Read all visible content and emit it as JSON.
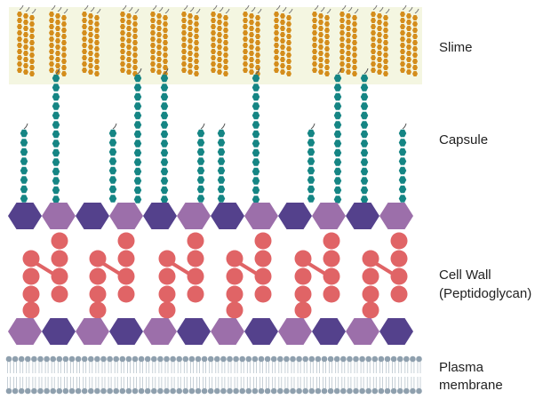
{
  "labels": {
    "slime": "Slime",
    "capsule": "Capsule",
    "cell_wall_line1": "Cell Wall",
    "cell_wall_line2": "(Peptidoglycan)",
    "plasma_line1": "Plasma",
    "plasma_line2": "membrane"
  },
  "colors": {
    "slime_bg": "#f4f6e1",
    "slime_bead": "#d48d1c",
    "capsule_bead": "#158584",
    "hex_dark": "#54418c",
    "hex_light": "#9c6faa",
    "peptide_circle": "#e06466",
    "lipid_head": "#8fa0ae",
    "lipid_tail": "#b9c4cd"
  }
}
